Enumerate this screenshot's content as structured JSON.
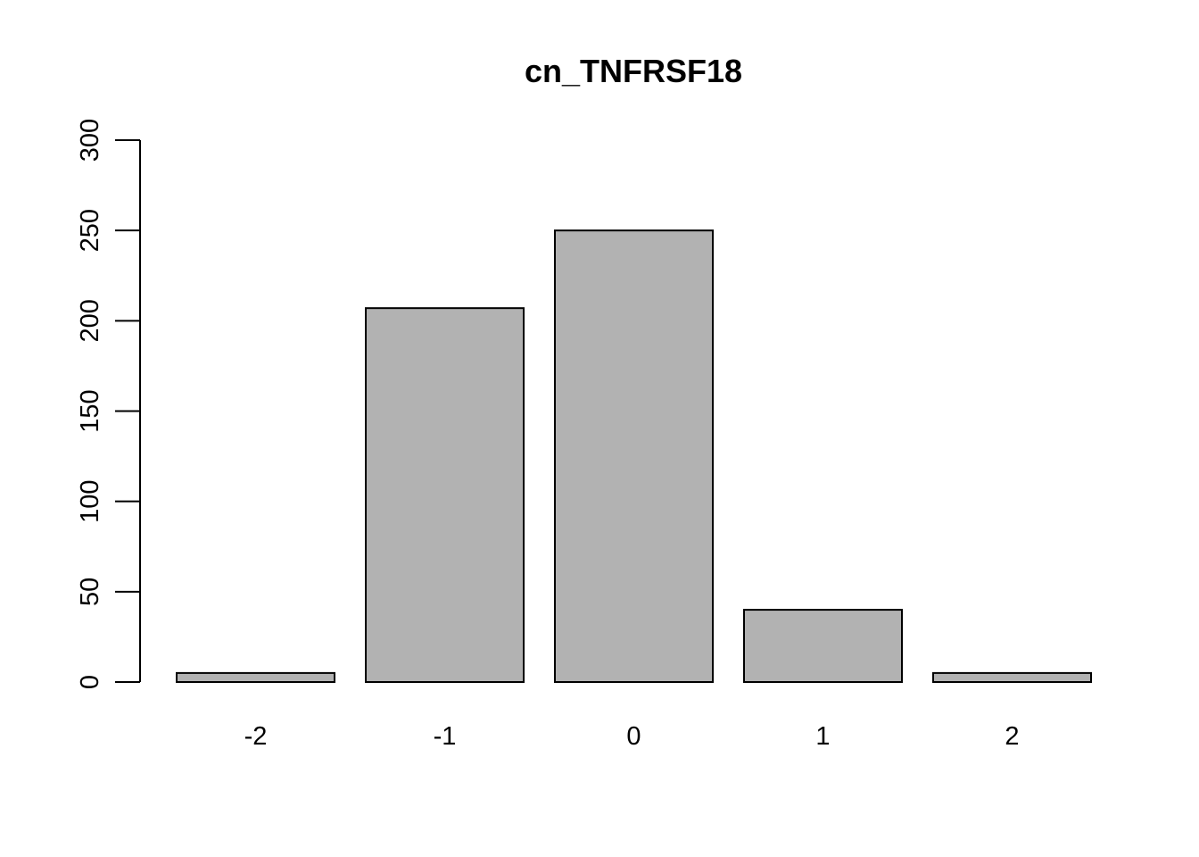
{
  "chart_data": {
    "type": "bar",
    "title": "cn_TNFRSF18",
    "xlabel": "",
    "ylabel": "",
    "categories": [
      "-2",
      "-1",
      "0",
      "1",
      "2"
    ],
    "values": [
      5,
      207,
      250,
      40,
      5
    ],
    "ylim": [
      0,
      300
    ],
    "yticks": [
      "0",
      "50",
      "100",
      "150",
      "200",
      "250",
      "300"
    ],
    "grid": false,
    "legend": "none",
    "bar_color": "#b2b2b2",
    "border_color": "#000000"
  }
}
